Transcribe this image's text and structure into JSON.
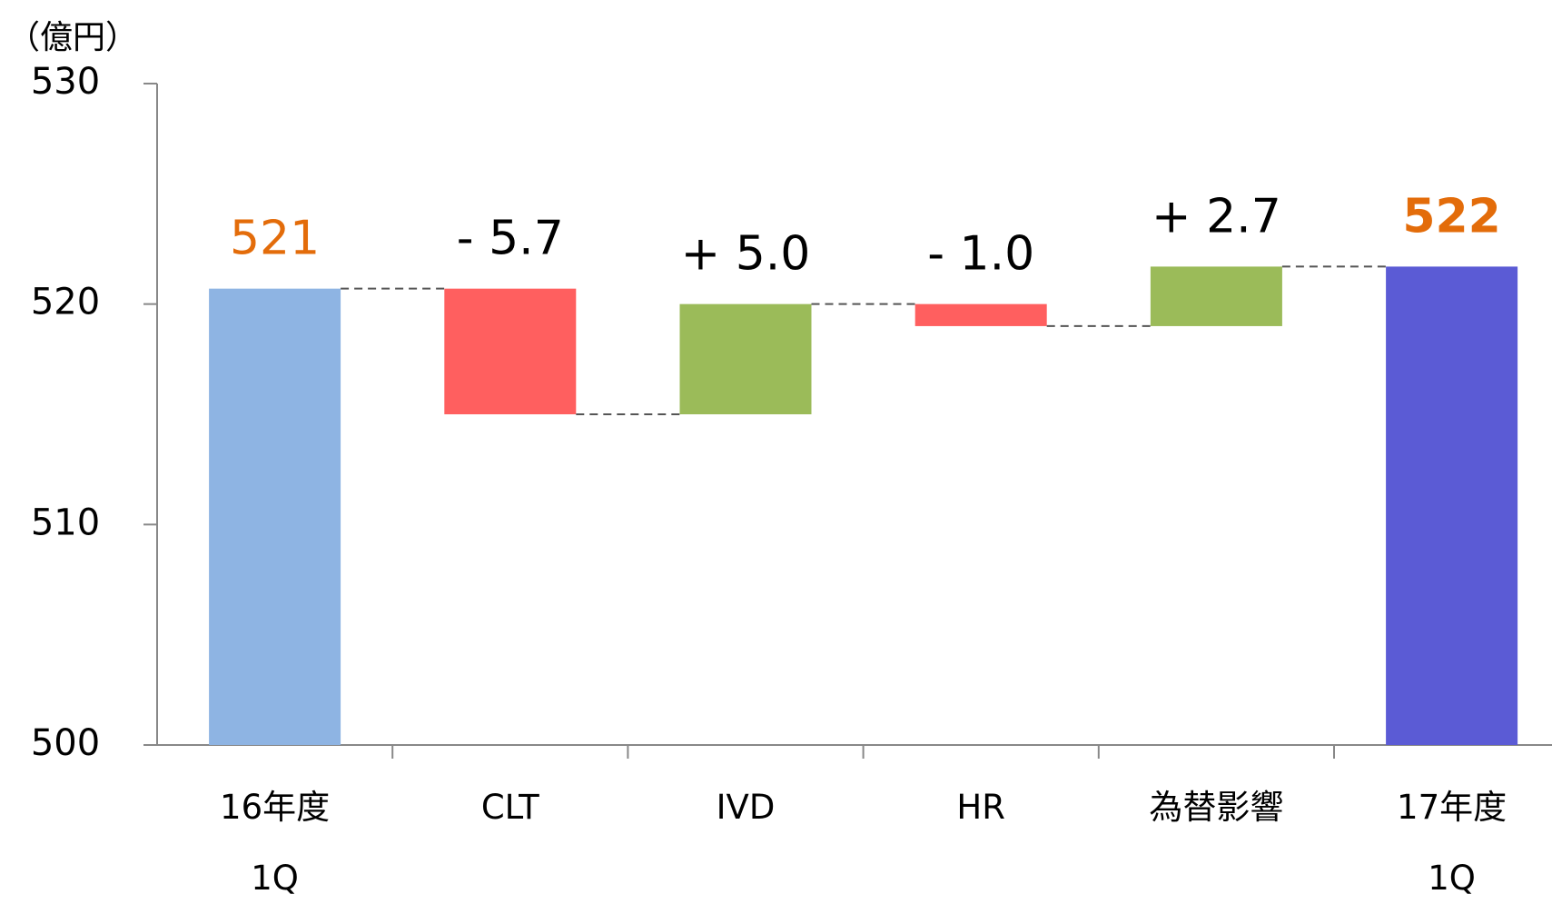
{
  "chart_data": {
    "type": "waterfall",
    "y_label": "（億円）",
    "categories": [
      "16年度\n1Q",
      "CLT",
      "IVD",
      "HR",
      "為替影響",
      "17年度\n1Q"
    ],
    "values": [
      520.7,
      -5.7,
      5.0,
      -1.0,
      2.7,
      521.7
    ],
    "value_labels": [
      "521",
      "- 5.7",
      "+ 5.0",
      "- 1.0",
      "+ 2.7",
      "522"
    ],
    "colors": [
      "#8eb4e3",
      "#ff5f5f",
      "#9bbb59",
      "#ff5f5f",
      "#9bbb59",
      "#5b5bd5"
    ],
    "value_label_colors": [
      "#e36c0a",
      "#000000",
      "#000000",
      "#000000",
      "#000000",
      "#e36c0a"
    ],
    "ylim": [
      500,
      530
    ],
    "yticks": [
      500,
      510,
      520,
      530
    ]
  }
}
